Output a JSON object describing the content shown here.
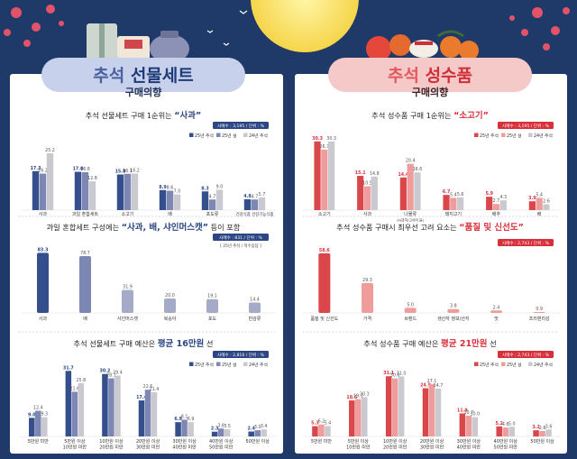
{
  "left_header": {
    "title_part1": "추석",
    "title_part2": "선물세트",
    "subtitle": "구매의향"
  },
  "right_header": {
    "title_part1": "추석",
    "title_part2": "성수품",
    "subtitle": "구매의향"
  },
  "legend": {
    "s1": "25년 추석",
    "s2": "25년 설",
    "s3": "24년 추석"
  },
  "colors": {
    "left_s1": "#344f8c",
    "left_s2": "#7d87b3",
    "left_s3": "#c9c9cf",
    "right_s1": "#d9474a",
    "right_s2": "#ef9c9d",
    "right_s3": "#c9c9cf",
    "left_accent": "#2b4682",
    "right_accent": "#d6303b"
  },
  "chart_data": [
    {
      "type": "bar",
      "title_pre": "추석 선물세트 구매 1순위는",
      "title_highlight": "“사과”",
      "sample": "사례수 : 3,195 / 단위 : %",
      "categories": [
        "사과",
        "과일 혼합세트",
        "소고기",
        "배",
        "포도류",
        "건강식품 건강기능식품"
      ],
      "series": [
        {
          "name": "25년 추석",
          "values": [
            17.3,
            17.0,
            15.8,
            8.9,
            8.3,
            4.8
          ]
        },
        {
          "name": "25년 설",
          "values": [
            16.2,
            16.8,
            16.1,
            8.6,
            4.7,
            4.7
          ]
        },
        {
          "name": "24년 추석",
          "values": [
            25.2,
            12.8,
            16.2,
            7.0,
            9.0,
            5.7
          ]
        }
      ],
      "ylim": [
        0,
        28
      ]
    },
    {
      "type": "bar",
      "title_pre": "과일 혼합세트 구성에는",
      "title_highlight": "“사과, 배, 샤인머스캣”",
      "title_post": "등이 포함",
      "sample": "사례수 : 831 / 단위 : %",
      "note": "[ 25년 추석 / 복수응답 ]",
      "categories": [
        "사과",
        "배",
        "샤인머스캣",
        "복숭아",
        "포도",
        "만감류"
      ],
      "values": [
        83.3,
        78.7,
        31.9,
        20.0,
        19.1,
        14.4
      ],
      "ylim": [
        0,
        90
      ]
    },
    {
      "type": "bar",
      "title_pre": "추석 선물세트 구매 예산은",
      "title_highlight": "평균 16만원",
      "title_post": "선",
      "sample": "사례수 : 2,816 / 단위 : %",
      "categories": [
        "5만원 미만",
        "5만원 이상 10만원 미만",
        "10만원 이상 20만원 미만",
        "20만원 이상 30만원 미만",
        "30만원 이상 40만원 미만",
        "40만원 이상 50만원 미만",
        "50만원 이상"
      ],
      "series": [
        {
          "name": "25년 추석",
          "values": [
            9.0,
            31.7,
            30.2,
            17.4,
            6.9,
            2.3,
            2.4
          ]
        },
        {
          "name": "25년 설",
          "values": [
            12.4,
            21.6,
            28.1,
            22.6,
            8.1,
            3.8,
            3.0
          ]
        },
        {
          "name": "24년 추석",
          "values": [
            9.3,
            25.8,
            29.4,
            21.4,
            6.9,
            3.5,
            3.4
          ]
        }
      ],
      "ylim": [
        0,
        34
      ]
    },
    {
      "type": "bar",
      "title_pre": "추석 성수품 구매 1순위는",
      "title_highlight": "“소고기”",
      "sample": "사례수 : 3,195 / 단위 : %",
      "categories": [
        "소고기",
        "사과",
        "나물류 (시금치/고사리 등)",
        "돼지고기",
        "배추",
        "배"
      ],
      "series": [
        {
          "name": "25년 추석",
          "values": [
            30.3,
            15.1,
            14.4,
            6.7,
            5.9,
            3.9
          ]
        },
        {
          "name": "25년 설",
          "values": [
            26.7,
            10.5,
            20.4,
            5.4,
            2.7,
            5.4
          ]
        },
        {
          "name": "24년 추석",
          "values": [
            30.3,
            14.8,
            16.6,
            5.6,
            4.3,
            2.6
          ]
        }
      ],
      "ylim": [
        0,
        33
      ]
    },
    {
      "type": "bar",
      "title_pre": "추석 성수품 구매시 최우선 고려 요소는",
      "title_highlight": "“품질 및 신선도”",
      "sample": "사례수 : 2,743 / 단위 : %",
      "categories": [
        "품질 및 신선도",
        "가격",
        "브랜드",
        "생산자 정보/산지",
        "맛",
        "조리편리성"
      ],
      "values": [
        58.6,
        29.3,
        5.0,
        3.8,
        2.4,
        0.9
      ],
      "ylim": [
        0,
        62
      ]
    },
    {
      "type": "bar",
      "title_pre": "추석 성수품 구매 예산은",
      "title_highlight": "평균 21만원",
      "title_post": "선",
      "sample": "사례수 : 2,743 / 단위 : %",
      "categories": [
        "5만원 미만",
        "5만원 이상 10만원 미만",
        "10만원 이상 20만원 미만",
        "20만원 이상 30만원 미만",
        "30만원 이상 40만원 미만",
        "40만원 이상 50만원 미만",
        "50만원 이상"
      ],
      "series": [
        {
          "name": "25년 추석",
          "values": [
            5.3,
            18.6,
            31.1,
            24.9,
            11.9,
            5.2,
            3.2
          ]
        },
        {
          "name": "25년 설",
          "values": [
            6.2,
            19.3,
            30.0,
            27.1,
            10.7,
            4.6,
            2.8
          ]
        },
        {
          "name": "24년 추석",
          "values": [
            5.4,
            20.3,
            31.0,
            24.7,
            10.0,
            5.0,
            3.6
          ]
        }
      ],
      "ylim": [
        0,
        34
      ]
    }
  ]
}
